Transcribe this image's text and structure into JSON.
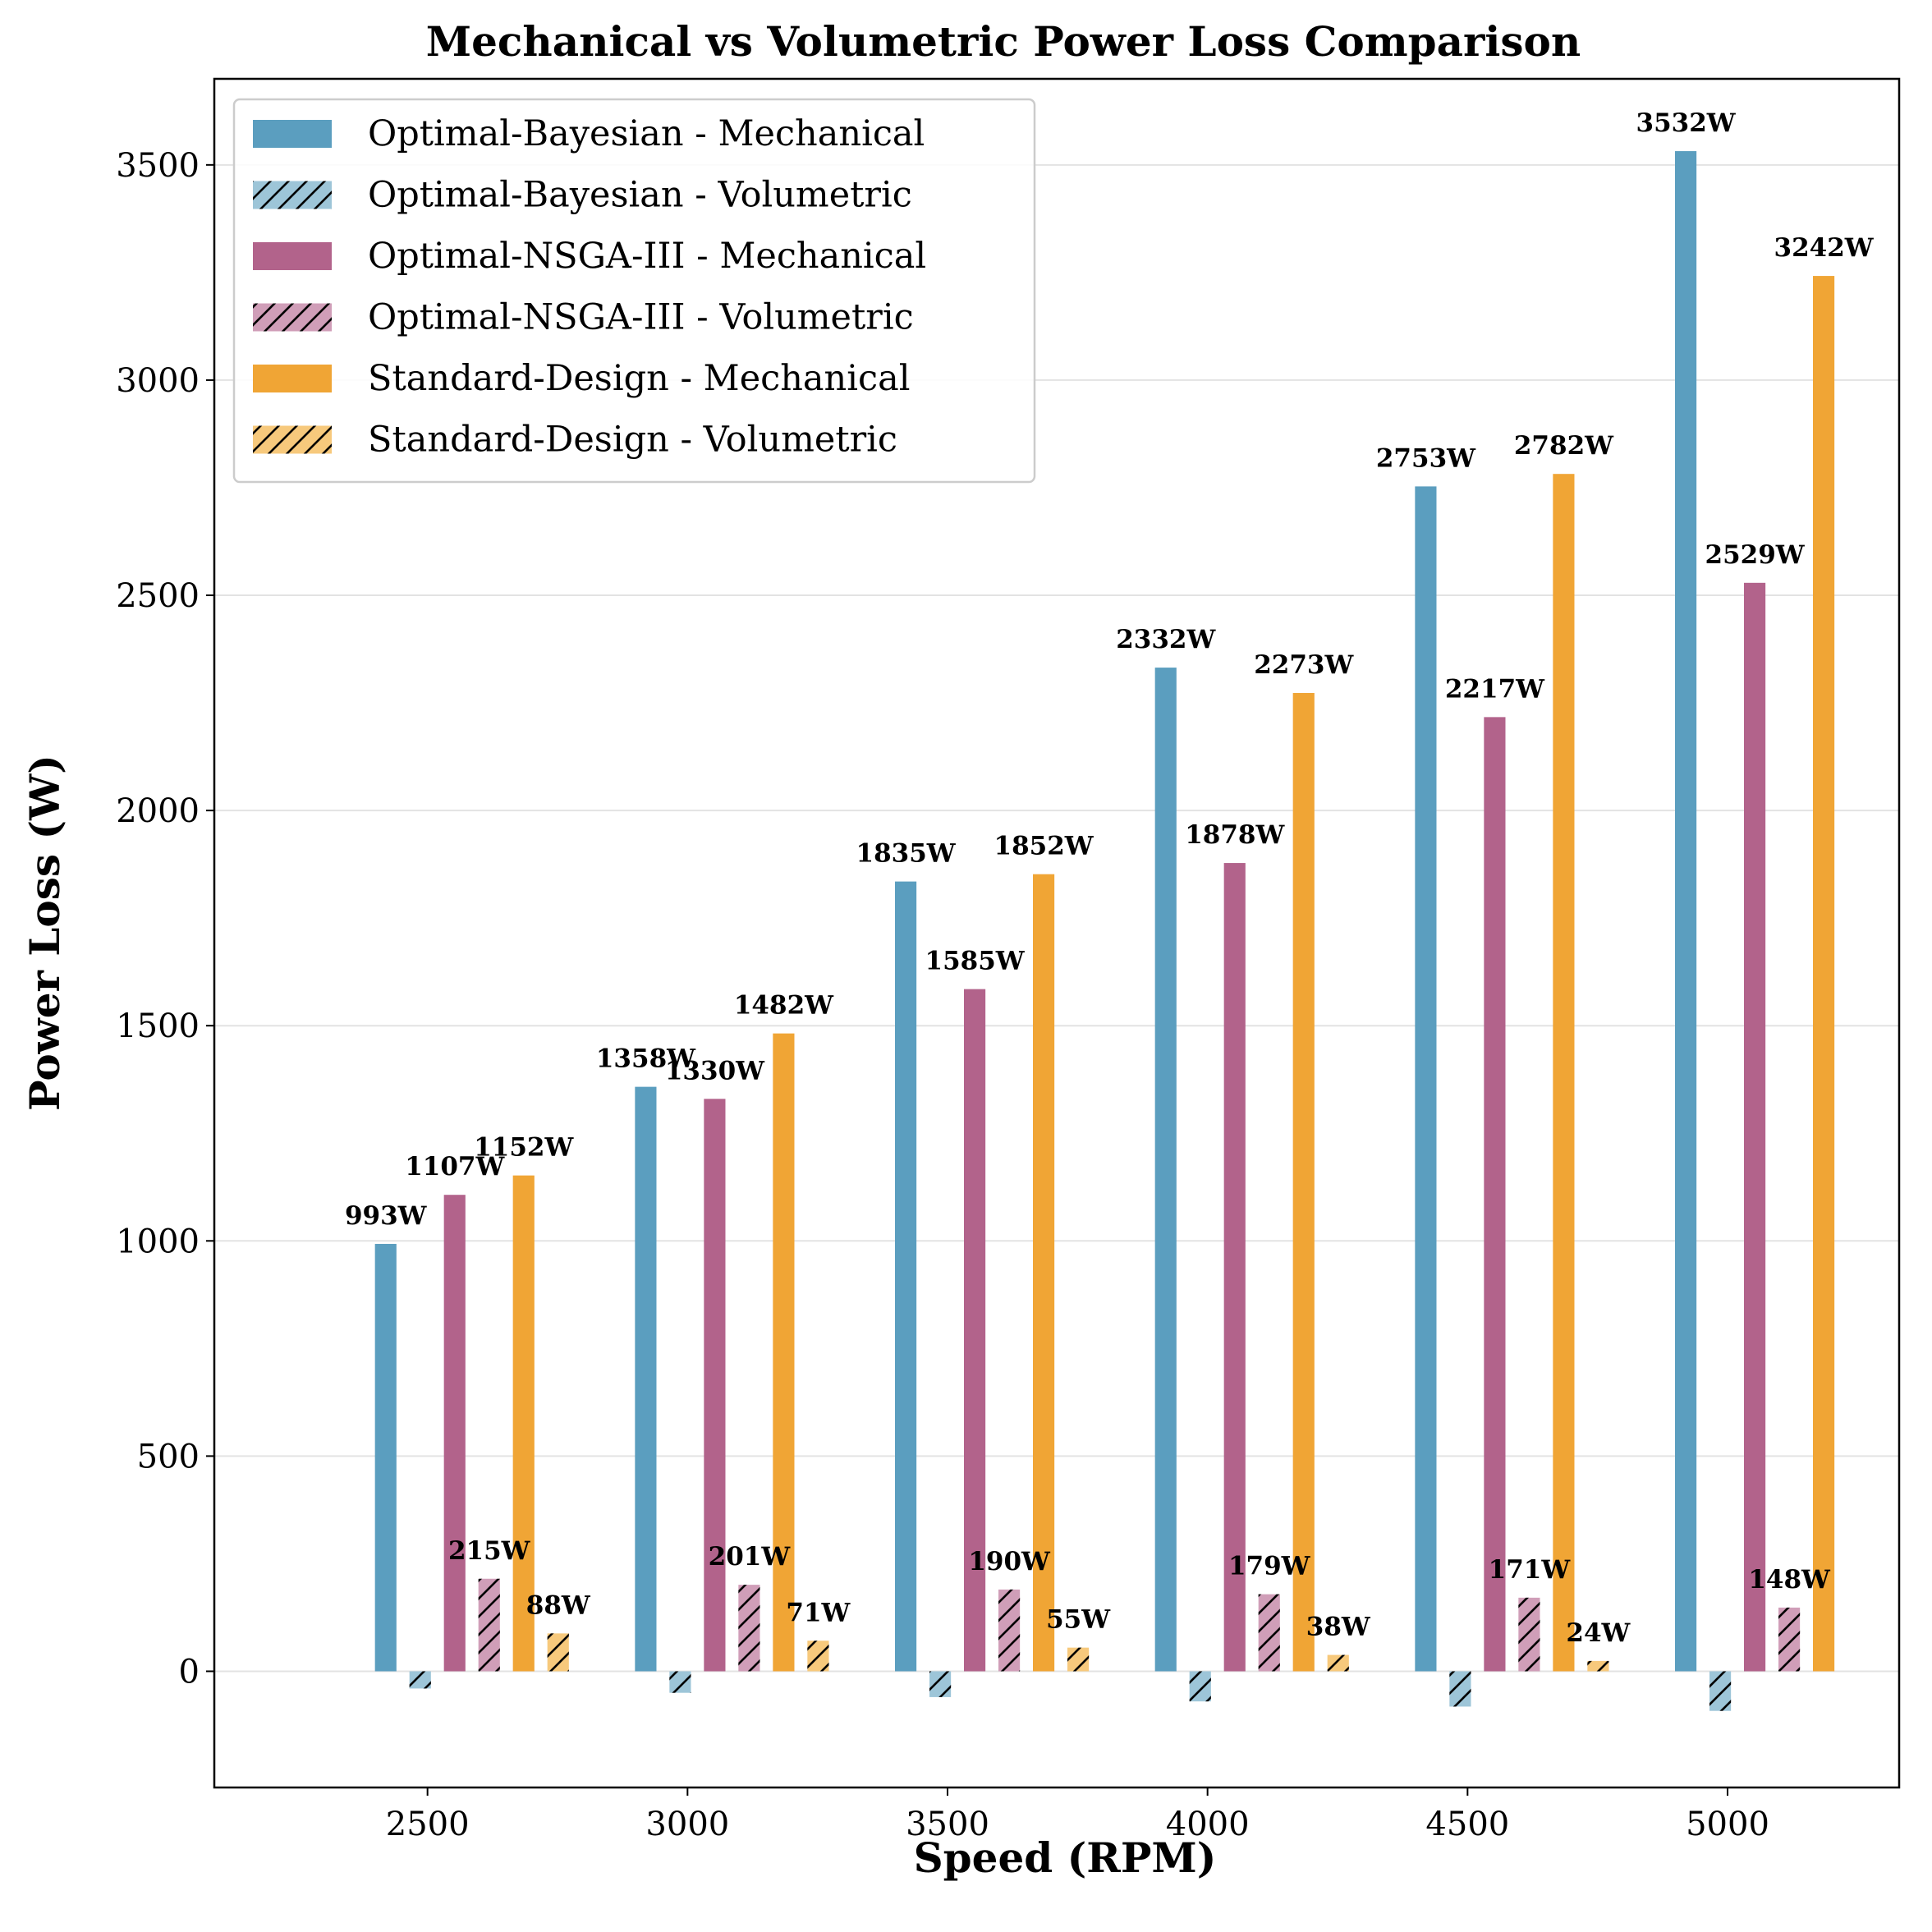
{
  "chart_data": {
    "type": "bar",
    "title": "Mechanical vs Volumetric Power Loss Comparison",
    "xlabel": "Speed (RPM)",
    "ylabel": "Power Loss (W)",
    "categories": [
      2500,
      3000,
      3500,
      4000,
      4500,
      5000
    ],
    "xlim": [
      2090,
      5330
    ],
    "ylim": [
      -270,
      3700
    ],
    "x_ticks": [
      "2500",
      "3000",
      "3500",
      "4000",
      "4500",
      "5000"
    ],
    "y_ticks": [
      "0",
      "500",
      "1000",
      "1500",
      "2000",
      "2500",
      "3000",
      "3500"
    ],
    "grid": "y",
    "legend_position": "top-left",
    "series": [
      {
        "name": "Optimal-Bayesian - Mechanical",
        "color": "#5b9ebf",
        "hatch": false,
        "values": [
          993,
          1358,
          1835,
          2332,
          2753,
          3532
        ],
        "labels": [
          "993W",
          "1358W",
          "1835W",
          "2332W",
          "2753W",
          "3532W"
        ]
      },
      {
        "name": "Optimal-Bayesian - Volumetric",
        "color": "#9dc5d8",
        "hatch": true,
        "values": [
          -40,
          -50,
          -60,
          -70,
          -82,
          -92
        ],
        "labels": []
      },
      {
        "name": "Optimal-NSGA-III - Mechanical",
        "color": "#b2638b",
        "hatch": false,
        "values": [
          1107,
          1330,
          1585,
          1878,
          2217,
          2529
        ],
        "labels": [
          "1107W",
          "1330W",
          "1585W",
          "1878W",
          "2217W",
          "2529W"
        ]
      },
      {
        "name": "Optimal-NSGA-III - Volumetric",
        "color": "#d09eb8",
        "hatch": true,
        "values": [
          215,
          201,
          190,
          179,
          171,
          148
        ],
        "labels": [
          "215W",
          "201W",
          "190W",
          "179W",
          "171W",
          "148W"
        ]
      },
      {
        "name": "Standard-Design - Mechanical",
        "color": "#f0a535",
        "hatch": false,
        "values": [
          1152,
          1482,
          1852,
          2273,
          2782,
          3242
        ],
        "labels": [
          "1152W",
          "1482W",
          "1852W",
          "2273W",
          "2782W",
          "3242W"
        ]
      },
      {
        "name": "Standard-Design - Volumetric",
        "color": "#f7c97c",
        "hatch": true,
        "values": [
          88,
          71,
          55,
          38,
          24,
          0
        ],
        "labels": [
          "88W",
          "71W",
          "55W",
          "38W",
          "24W",
          ""
        ]
      }
    ]
  }
}
